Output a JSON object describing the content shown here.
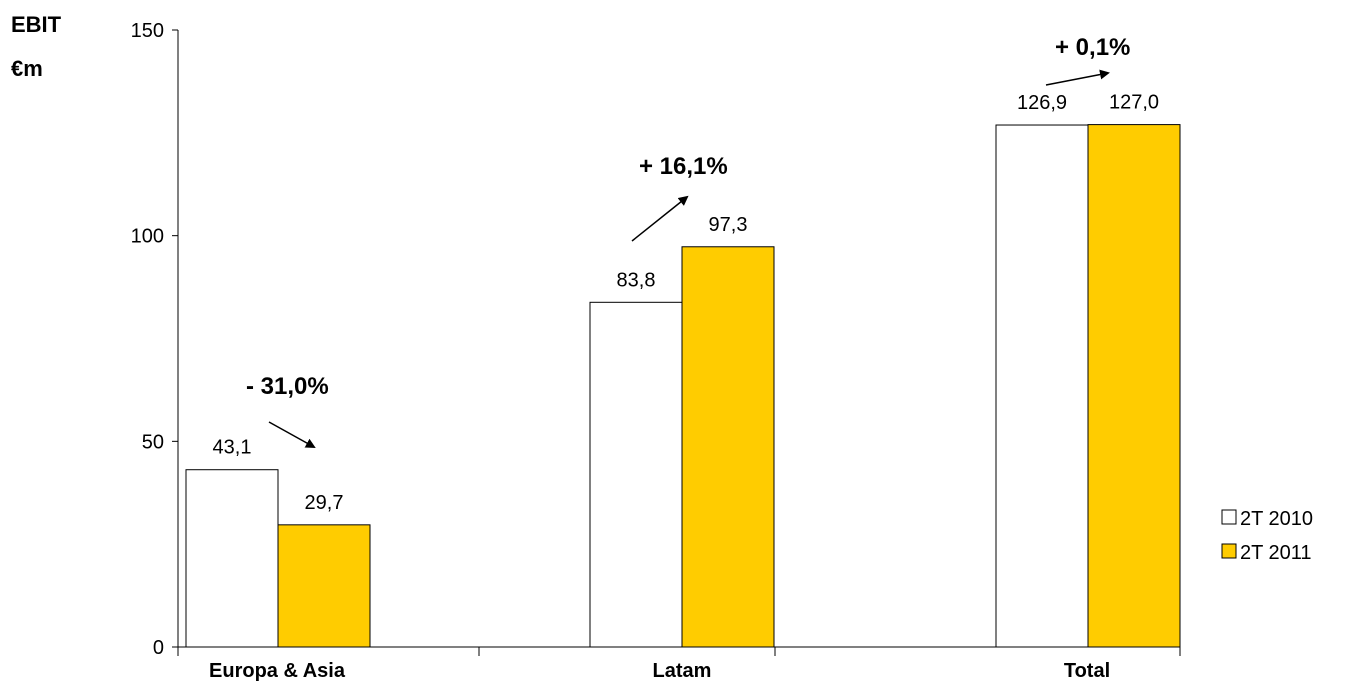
{
  "chart_data": {
    "type": "bar",
    "ylabel_line1": "EBIT",
    "ylabel_line2": "€m",
    "categories": [
      "Europa & Asia",
      "Latam",
      "Total"
    ],
    "ylim": [
      0,
      150
    ],
    "yticks": [
      0,
      50,
      100,
      150
    ],
    "grid": false,
    "legend_position": "right",
    "series": [
      {
        "name": "2T 2010",
        "values": [
          43.1,
          83.8,
          126.9
        ],
        "labels": [
          "43,1",
          "83,8",
          "126,9"
        ],
        "color": "#ffffff"
      },
      {
        "name": "2T 2011",
        "values": [
          29.7,
          97.3,
          127.0
        ],
        "labels": [
          "29,7",
          "97,3",
          "127,0"
        ],
        "color": "#ffcc00"
      }
    ],
    "annotations": [
      "- 31,0%",
      "+ 16,1%",
      "+ 0,1%"
    ]
  }
}
